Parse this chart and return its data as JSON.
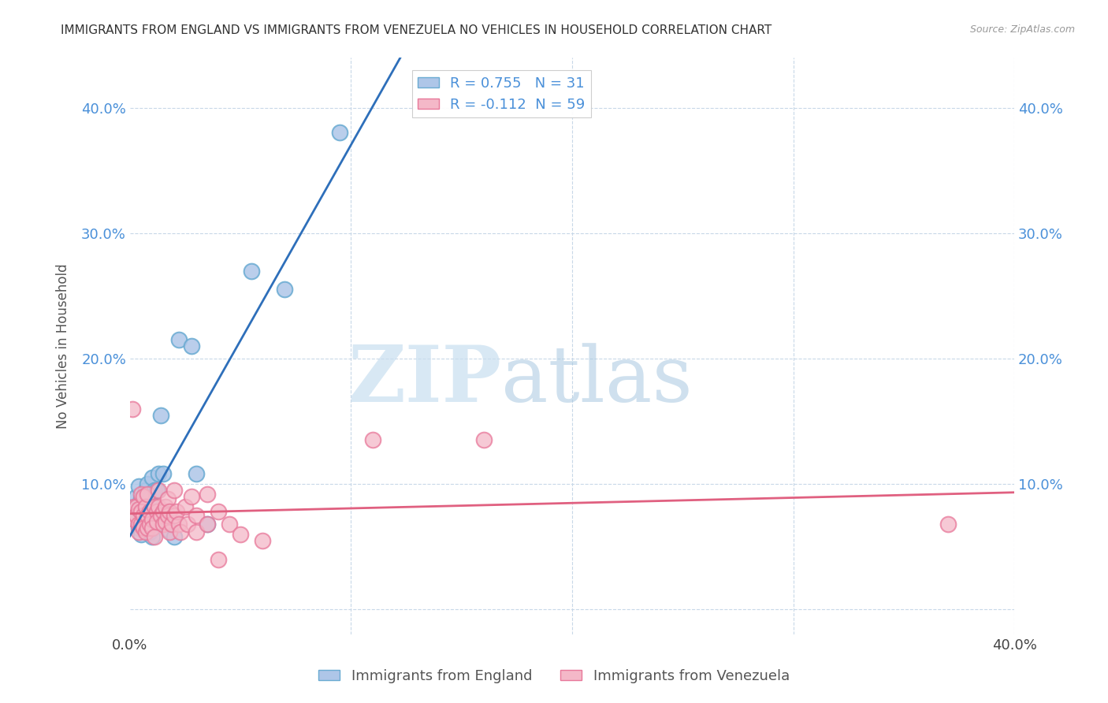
{
  "title": "IMMIGRANTS FROM ENGLAND VS IMMIGRANTS FROM VENEZUELA NO VEHICLES IN HOUSEHOLD CORRELATION CHART",
  "source": "Source: ZipAtlas.com",
  "ylabel": "No Vehicles in Household",
  "xlim": [
    0.0,
    0.4
  ],
  "ylim": [
    -0.02,
    0.44
  ],
  "ylim_display": [
    0.0,
    0.42
  ],
  "ytick_vals": [
    0.0,
    0.1,
    0.2,
    0.3,
    0.4
  ],
  "ytick_labels_left": [
    "",
    "10.0%",
    "20.0%",
    "30.0%",
    "40.0%"
  ],
  "ytick_labels_right": [
    "",
    "10.0%",
    "20.0%",
    "30.0%",
    "40.0%"
  ],
  "xtick_vals": [
    0.0,
    0.1,
    0.2,
    0.3,
    0.4
  ],
  "xtick_labels": [
    "0.0%",
    "",
    "",
    "",
    "40.0%"
  ],
  "england_color": "#aec6e8",
  "england_edge": "#6aabd2",
  "venezuela_color": "#f4b8c8",
  "venezuela_edge": "#e8789a",
  "england_R": 0.755,
  "england_N": 31,
  "venezuela_R": -0.112,
  "venezuela_N": 59,
  "england_line_color": "#2e6fba",
  "venezuela_line_color": "#e06080",
  "watermark_zip": "ZIP",
  "watermark_atlas": "atlas",
  "england_scatter": [
    [
      0.002,
      0.082
    ],
    [
      0.003,
      0.09
    ],
    [
      0.003,
      0.072
    ],
    [
      0.004,
      0.098
    ],
    [
      0.004,
      0.065
    ],
    [
      0.005,
      0.088
    ],
    [
      0.005,
      0.06
    ],
    [
      0.006,
      0.078
    ],
    [
      0.006,
      0.07
    ],
    [
      0.007,
      0.095
    ],
    [
      0.007,
      0.068
    ],
    [
      0.008,
      0.1
    ],
    [
      0.009,
      0.088
    ],
    [
      0.009,
      0.062
    ],
    [
      0.01,
      0.105
    ],
    [
      0.01,
      0.058
    ],
    [
      0.011,
      0.095
    ],
    [
      0.012,
      0.095
    ],
    [
      0.013,
      0.108
    ],
    [
      0.014,
      0.155
    ],
    [
      0.015,
      0.108
    ],
    [
      0.016,
      0.068
    ],
    [
      0.018,
      0.063
    ],
    [
      0.02,
      0.058
    ],
    [
      0.022,
      0.215
    ],
    [
      0.028,
      0.21
    ],
    [
      0.03,
      0.108
    ],
    [
      0.035,
      0.068
    ],
    [
      0.055,
      0.27
    ],
    [
      0.07,
      0.255
    ],
    [
      0.095,
      0.38
    ]
  ],
  "venezuela_scatter": [
    [
      0.001,
      0.16
    ],
    [
      0.002,
      0.082
    ],
    [
      0.002,
      0.072
    ],
    [
      0.003,
      0.082
    ],
    [
      0.003,
      0.075
    ],
    [
      0.004,
      0.08
    ],
    [
      0.004,
      0.068
    ],
    [
      0.004,
      0.062
    ],
    [
      0.005,
      0.092
    ],
    [
      0.005,
      0.078
    ],
    [
      0.005,
      0.068
    ],
    [
      0.006,
      0.09
    ],
    [
      0.006,
      0.075
    ],
    [
      0.006,
      0.065
    ],
    [
      0.007,
      0.082
    ],
    [
      0.007,
      0.062
    ],
    [
      0.008,
      0.092
    ],
    [
      0.008,
      0.075
    ],
    [
      0.008,
      0.065
    ],
    [
      0.009,
      0.078
    ],
    [
      0.009,
      0.068
    ],
    [
      0.01,
      0.072
    ],
    [
      0.01,
      0.065
    ],
    [
      0.011,
      0.082
    ],
    [
      0.011,
      0.058
    ],
    [
      0.012,
      0.078
    ],
    [
      0.012,
      0.07
    ],
    [
      0.013,
      0.095
    ],
    [
      0.013,
      0.082
    ],
    [
      0.014,
      0.075
    ],
    [
      0.015,
      0.078
    ],
    [
      0.015,
      0.068
    ],
    [
      0.016,
      0.082
    ],
    [
      0.016,
      0.07
    ],
    [
      0.017,
      0.088
    ],
    [
      0.017,
      0.075
    ],
    [
      0.018,
      0.078
    ],
    [
      0.018,
      0.062
    ],
    [
      0.019,
      0.068
    ],
    [
      0.02,
      0.095
    ],
    [
      0.02,
      0.075
    ],
    [
      0.021,
      0.078
    ],
    [
      0.022,
      0.068
    ],
    [
      0.023,
      0.062
    ],
    [
      0.025,
      0.082
    ],
    [
      0.026,
      0.068
    ],
    [
      0.028,
      0.09
    ],
    [
      0.03,
      0.075
    ],
    [
      0.03,
      0.062
    ],
    [
      0.035,
      0.092
    ],
    [
      0.035,
      0.068
    ],
    [
      0.04,
      0.078
    ],
    [
      0.04,
      0.04
    ],
    [
      0.045,
      0.068
    ],
    [
      0.05,
      0.06
    ],
    [
      0.06,
      0.055
    ],
    [
      0.11,
      0.135
    ],
    [
      0.16,
      0.135
    ],
    [
      0.37,
      0.068
    ]
  ]
}
